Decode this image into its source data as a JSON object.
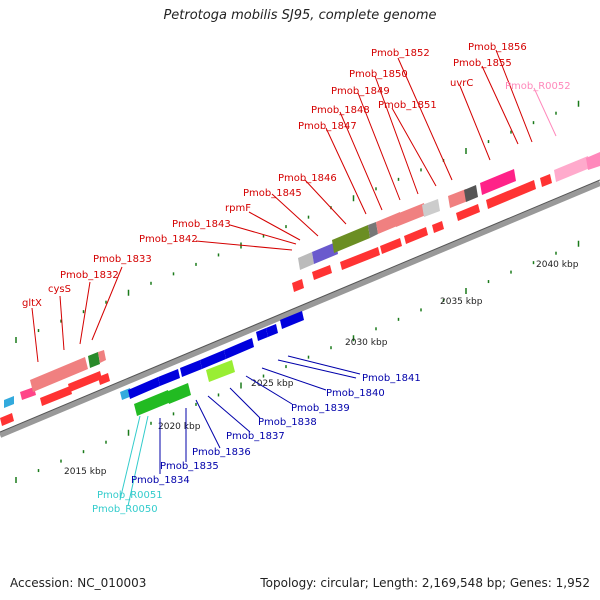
{
  "title": "Petrotoga mobilis SJ95, complete genome",
  "footer": {
    "accession": "Accession: NC_010003",
    "topology": "Topology: circular; Length: 2,169,548 bp; Genes: 1,952"
  },
  "colors": {
    "forward_label": "#d40000",
    "reverse_label": "#0000aa",
    "rna_label": "#33cccc",
    "pink_label": "#ff88bb",
    "forward_gene": "#ff0000",
    "reverse_gene": "#0000dd",
    "backbone": "#888888",
    "tick": "#1a7a1a"
  },
  "scale_labels": [
    "2015 kbp",
    "2020 kbp",
    "2025 kbp",
    "2030 kbp",
    "2035 kbp",
    "2040 kbp"
  ],
  "forward_labels": [
    "gltX",
    "cysS",
    "Pmob_1832",
    "Pmob_1833",
    "Pmob_1842",
    "Pmob_1843",
    "rpmF",
    "Pmob_1845",
    "Pmob_1846",
    "Pmob_1847",
    "Pmob_1848",
    "Pmob_1849",
    "Pmob_1850",
    "Pmob_1851",
    "Pmob_1852",
    "uvrC",
    "Pmob_1855",
    "Pmob_1856",
    "Pmob_R0052"
  ],
  "reverse_labels": [
    "Pmob_R0050",
    "Pmob_R0051",
    "Pmob_1834",
    "Pmob_1835",
    "Pmob_1836",
    "Pmob_1837",
    "Pmob_1838",
    "Pmob_1839",
    "Pmob_1840",
    "Pmob_1841"
  ]
}
